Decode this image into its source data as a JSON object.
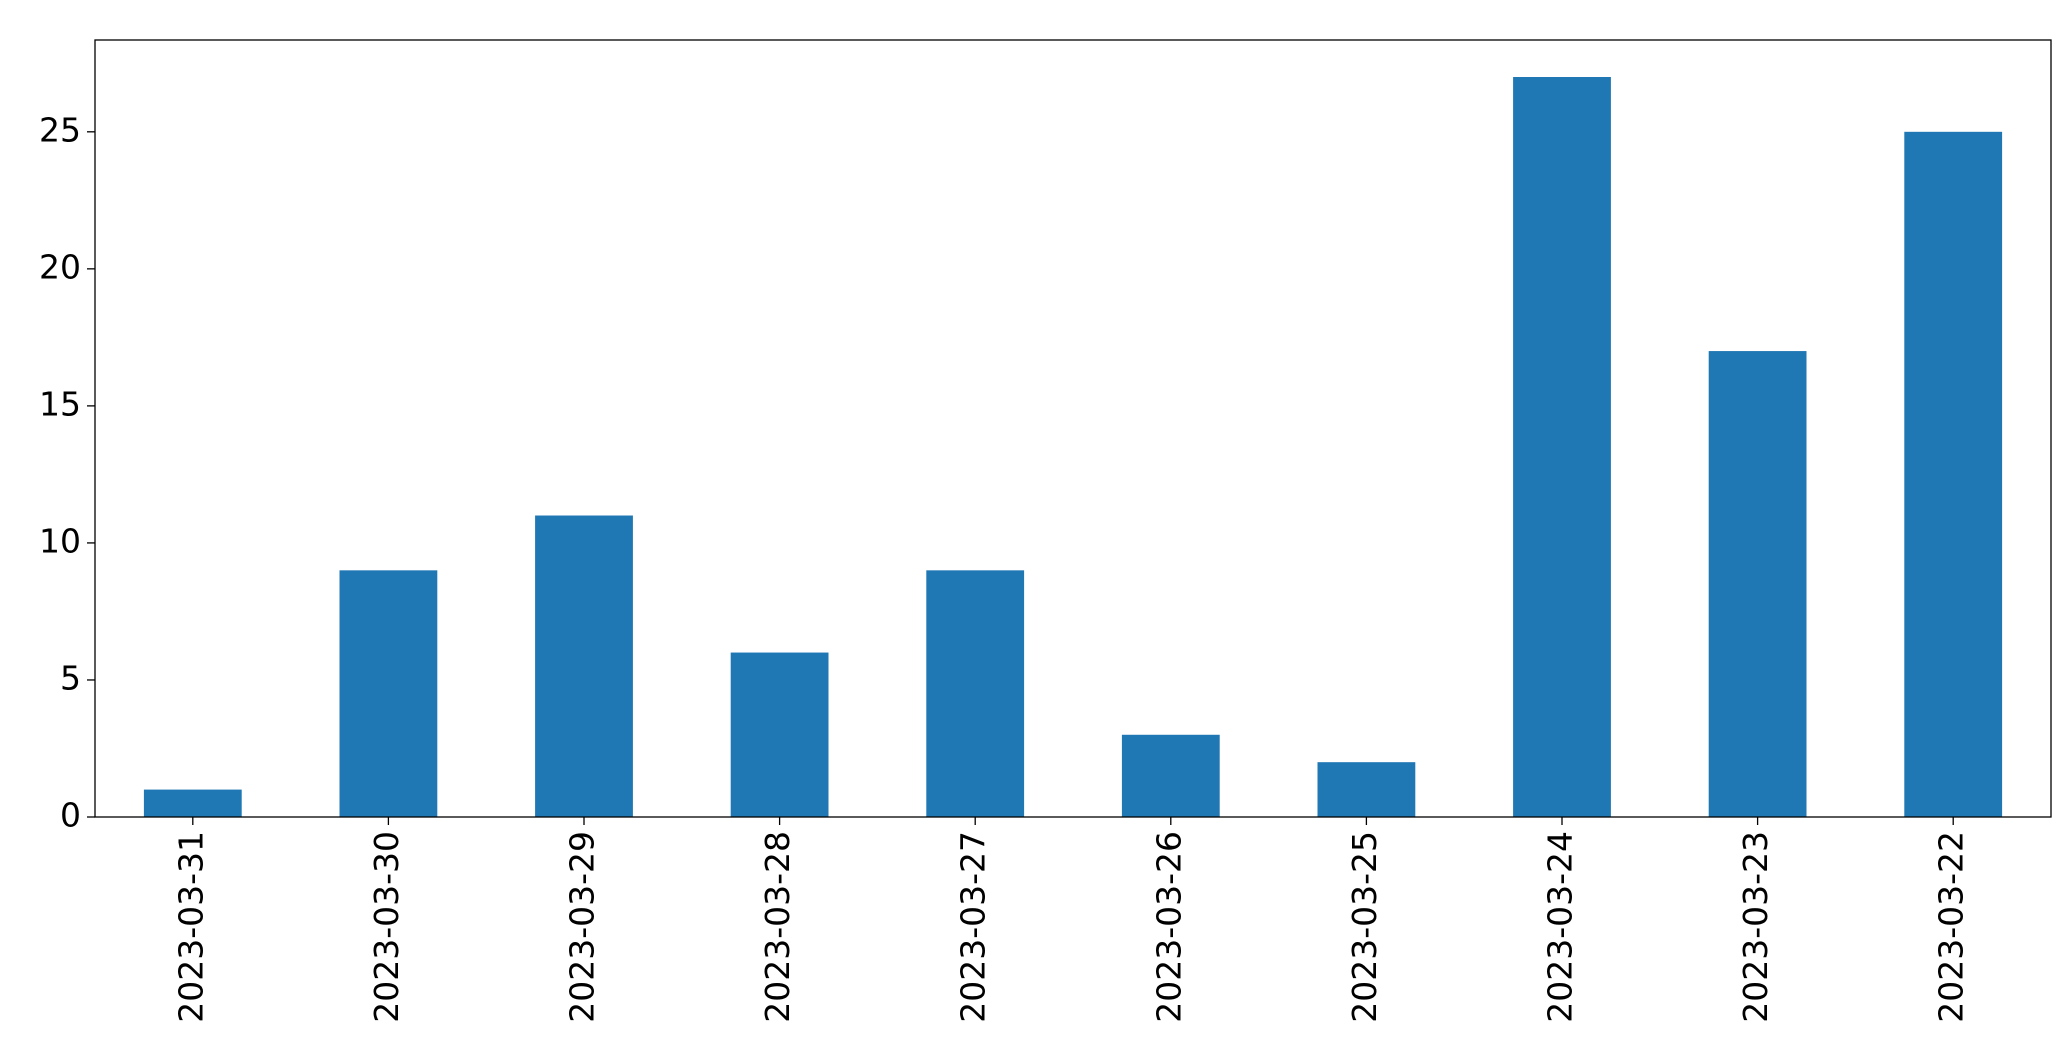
{
  "chart_data": {
    "type": "bar",
    "categories": [
      "2023-03-31",
      "2023-03-30",
      "2023-03-29",
      "2023-03-28",
      "2023-03-27",
      "2023-03-26",
      "2023-03-25",
      "2023-03-24",
      "2023-03-23",
      "2023-03-22"
    ],
    "values": [
      1,
      9,
      11,
      6,
      9,
      3,
      2,
      27,
      17,
      25
    ],
    "color": "#1f77b4",
    "ylim": [
      0,
      28.35
    ],
    "yticks": [
      0,
      5,
      10,
      15,
      20,
      25
    ],
    "grid": false
  }
}
